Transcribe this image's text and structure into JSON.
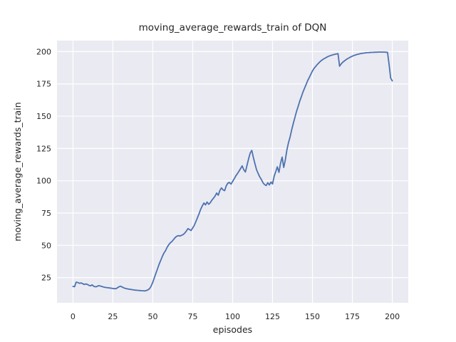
{
  "chart_data": {
    "type": "line",
    "title": "moving_average_rewards_train of DQN",
    "xlabel": "episodes",
    "ylabel": "moving_average_rewards_train",
    "x_ticks": [
      0,
      25,
      50,
      75,
      100,
      125,
      150,
      175,
      200
    ],
    "y_ticks": [
      25,
      50,
      75,
      100,
      125,
      150,
      175,
      200
    ],
    "xlim": [
      -10,
      210
    ],
    "ylim": [
      5.5,
      208.5
    ],
    "grid": true,
    "legend_position": "none",
    "style": {
      "axes_bg": "#EAEAF2",
      "grid_color": "#FFFFFF",
      "line_color": "#4C72B0",
      "text_color": "#262626",
      "figure_bg": "#FFFFFF"
    },
    "series": [
      {
        "name": "DQN moving average reward (train)",
        "x": [
          0,
          1,
          2,
          3,
          4,
          5,
          6,
          7,
          8,
          9,
          10,
          11,
          12,
          13,
          14,
          15,
          16,
          17,
          18,
          19,
          20,
          21,
          22,
          23,
          24,
          25,
          26,
          27,
          28,
          29,
          30,
          31,
          32,
          33,
          34,
          35,
          36,
          37,
          38,
          39,
          40,
          41,
          42,
          43,
          44,
          45,
          46,
          47,
          48,
          49,
          50,
          51,
          52,
          53,
          54,
          55,
          56,
          57,
          58,
          59,
          60,
          61,
          62,
          63,
          64,
          65,
          66,
          67,
          68,
          69,
          70,
          71,
          72,
          73,
          74,
          75,
          76,
          77,
          78,
          79,
          80,
          81,
          82,
          83,
          84,
          85,
          86,
          87,
          88,
          89,
          90,
          91,
          92,
          93,
          94,
          95,
          96,
          97,
          98,
          99,
          100,
          101,
          102,
          103,
          104,
          105,
          106,
          107,
          108,
          109,
          110,
          111,
          112,
          113,
          114,
          115,
          116,
          117,
          118,
          119,
          120,
          121,
          122,
          123,
          124,
          125,
          126,
          127,
          128,
          129,
          130,
          131,
          132,
          133,
          134,
          135,
          136,
          137,
          138,
          139,
          140,
          141,
          142,
          143,
          144,
          145,
          146,
          147,
          148,
          149,
          150,
          151,
          152,
          153,
          154,
          155,
          156,
          157,
          158,
          159,
          160,
          161,
          162,
          163,
          164,
          165,
          166,
          167,
          168,
          169,
          170,
          171,
          172,
          173,
          174,
          175,
          176,
          177,
          178,
          179,
          180,
          181,
          182,
          183,
          184,
          185,
          186,
          187,
          188,
          189,
          190,
          191,
          192,
          193,
          194,
          195,
          196,
          197,
          198,
          199,
          200
        ],
        "y": [
          18.2,
          18.0,
          21.5,
          21.2,
          20.6,
          20.9,
          20.4,
          19.7,
          20.1,
          19.8,
          19.0,
          18.7,
          19.4,
          18.3,
          17.9,
          18.1,
          18.8,
          18.5,
          18.2,
          17.8,
          17.5,
          17.3,
          17.2,
          17.0,
          16.8,
          16.6,
          16.4,
          16.5,
          17.3,
          18.0,
          18.3,
          17.6,
          17.0,
          16.6,
          16.3,
          16.1,
          15.9,
          15.7,
          15.5,
          15.3,
          15.2,
          15.1,
          15.0,
          14.9,
          14.8,
          14.7,
          15.0,
          15.6,
          16.5,
          18.5,
          21.5,
          25.0,
          28.5,
          32.0,
          35.5,
          38.5,
          41.5,
          44.0,
          46.0,
          48.5,
          50.5,
          52.0,
          53.0,
          54.5,
          56.0,
          57.0,
          57.5,
          57.2,
          57.8,
          58.3,
          59.5,
          61.0,
          63.0,
          62.2,
          61.5,
          63.5,
          65.5,
          68.5,
          71.5,
          74.5,
          78.0,
          80.5,
          82.8,
          81.3,
          83.5,
          81.8,
          83.0,
          85.0,
          86.5,
          88.2,
          90.5,
          88.8,
          92.5,
          94.5,
          93.0,
          92.3,
          96.0,
          98.2,
          98.7,
          97.4,
          99.5,
          101.5,
          103.8,
          105.5,
          107.5,
          109.5,
          111.5,
          108.5,
          106.8,
          112.0,
          117.0,
          121.5,
          123.5,
          118.0,
          113.0,
          108.5,
          105.5,
          103.0,
          101.0,
          98.5,
          97.0,
          96.3,
          98.5,
          96.8,
          99.0,
          97.5,
          103.5,
          107.0,
          110.8,
          106.5,
          113.5,
          118.3,
          110.3,
          116.0,
          124.0,
          129.5,
          134.0,
          139.5,
          144.5,
          149.0,
          153.5,
          157.5,
          161.5,
          165.0,
          168.5,
          171.5,
          174.5,
          177.5,
          180.0,
          182.5,
          185.0,
          187.0,
          188.5,
          190.0,
          191.3,
          192.5,
          193.5,
          194.3,
          195.0,
          195.7,
          196.3,
          196.8,
          197.2,
          197.6,
          197.9,
          198.2,
          198.4,
          188.7,
          190.5,
          191.8,
          192.8,
          193.7,
          194.5,
          195.2,
          195.9,
          196.5,
          197.0,
          197.4,
          197.8,
          198.1,
          198.4,
          198.6,
          198.8,
          199.0,
          199.1,
          199.2,
          199.3,
          199.4,
          199.4,
          199.5,
          199.5,
          199.6,
          199.6,
          199.6,
          199.6,
          199.6,
          199.5,
          199.4,
          190.0,
          179.5,
          177.3
        ]
      }
    ]
  }
}
